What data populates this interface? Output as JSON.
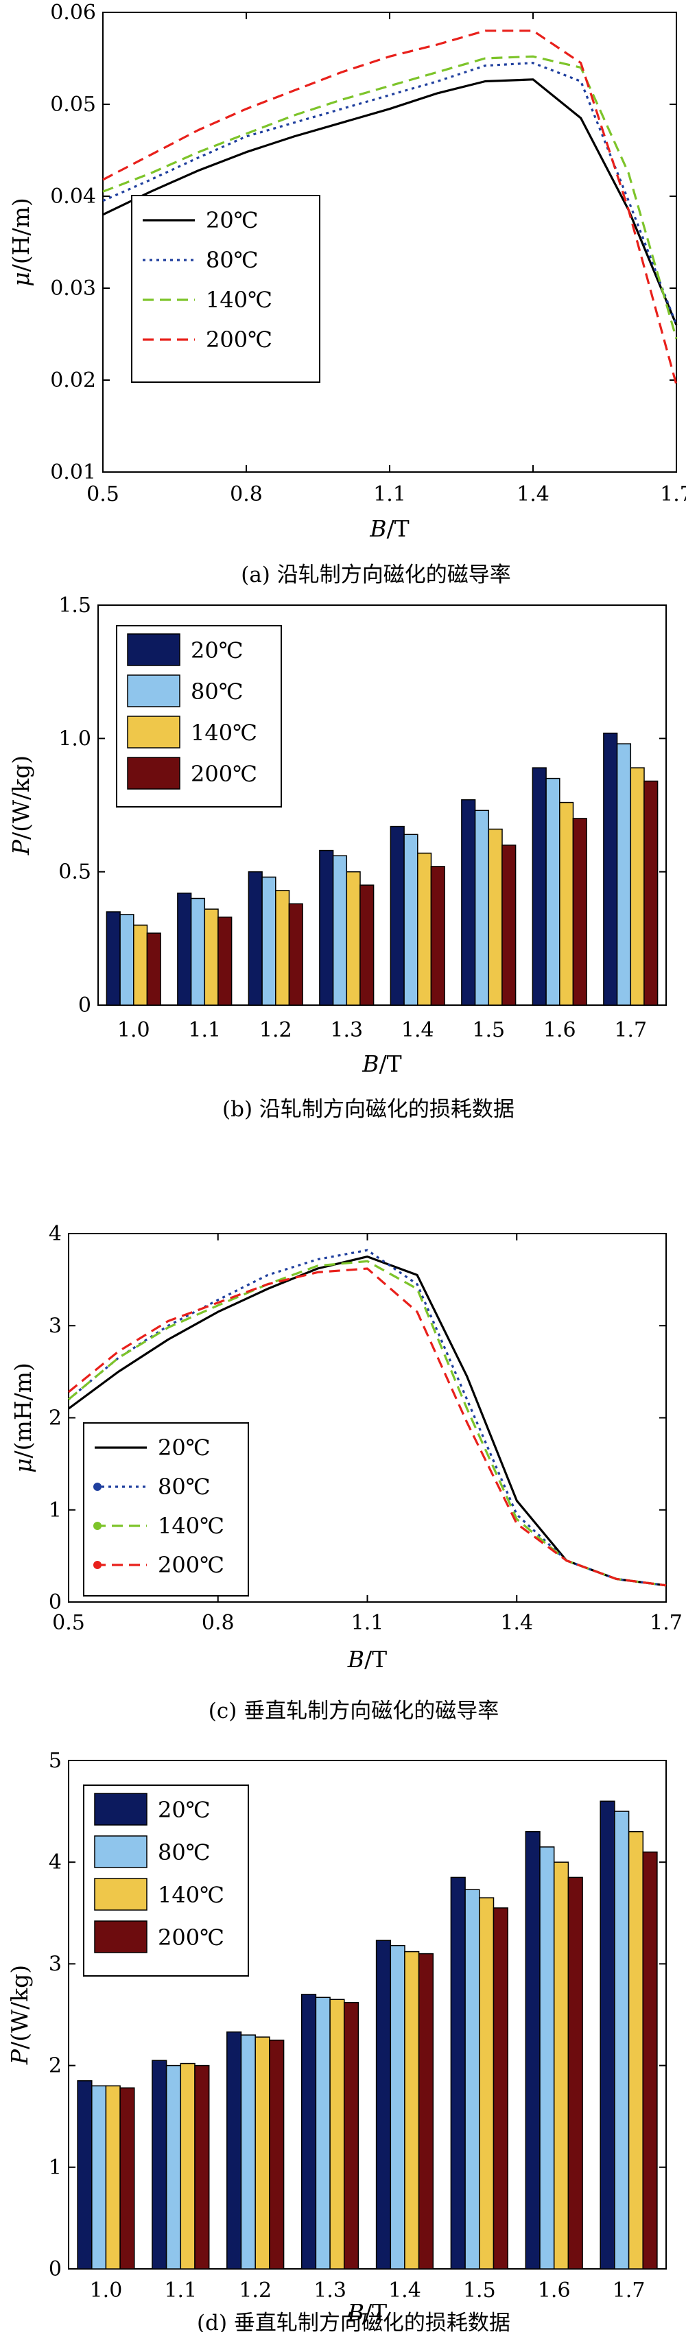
{
  "chart_data": [
    {
      "type": "line",
      "caption": "(a) 沿轧制方向磁化的磁导率",
      "xlabel_italic": "B",
      "xlabel_unit": "/T",
      "ylabel_italic": "μ",
      "ylabel_unit": "/(H/m)",
      "xlim": [
        0.5,
        1.7
      ],
      "ylim": [
        0.01,
        0.06
      ],
      "xticks": [
        0.5,
        0.8,
        1.1,
        1.4,
        1.7
      ],
      "xtick_labels": [
        "0.5",
        "0.8",
        "1.1",
        "1.4",
        "1.7"
      ],
      "yticks": [
        0.01,
        0.02,
        0.03,
        0.04,
        0.05,
        0.06
      ],
      "ytick_labels": [
        "0.01",
        "0.02",
        "0.03",
        "0.04",
        "0.05",
        "0.06"
      ],
      "grid": false,
      "legend_position": "left-middle",
      "x": [
        0.5,
        0.6,
        0.7,
        0.8,
        0.9,
        1.0,
        1.1,
        1.2,
        1.3,
        1.4,
        1.5,
        1.6,
        1.7
      ],
      "series": [
        {
          "name": "20℃",
          "color": "#000000",
          "dash": "solid",
          "values": [
            0.038,
            0.0405,
            0.0428,
            0.0448,
            0.0465,
            0.048,
            0.0495,
            0.0512,
            0.0525,
            0.0527,
            0.0485,
            0.0385,
            0.026
          ]
        },
        {
          "name": "80℃",
          "color": "#1f3f9e",
          "dash": "dot",
          "values": [
            0.0395,
            0.0418,
            0.0442,
            0.0465,
            0.048,
            0.0495,
            0.051,
            0.0525,
            0.0542,
            0.0545,
            0.0525,
            0.0395,
            0.026
          ]
        },
        {
          "name": "140℃",
          "color": "#7dc42a",
          "dash": "dash",
          "values": [
            0.0405,
            0.0425,
            0.0448,
            0.0468,
            0.0488,
            0.0505,
            0.052,
            0.0535,
            0.055,
            0.0552,
            0.054,
            0.0425,
            0.0245
          ]
        },
        {
          "name": "200℃",
          "color": "#e8201b",
          "dash": "dash",
          "values": [
            0.0418,
            0.0445,
            0.0472,
            0.0495,
            0.0515,
            0.0535,
            0.0552,
            0.0565,
            0.058,
            0.058,
            0.0545,
            0.0385,
            0.0195
          ]
        }
      ]
    },
    {
      "type": "bar",
      "caption": "(b) 沿轧制方向磁化的损耗数据",
      "xlabel_italic": "B",
      "xlabel_unit": "/T",
      "ylabel_italic": "P",
      "ylabel_unit": "/(W/kg)",
      "ylim": [
        0,
        1.5
      ],
      "yticks": [
        0,
        0.5,
        1.0,
        1.5
      ],
      "ytick_labels": [
        "0",
        "0.5",
        "1.0",
        "1.5"
      ],
      "categories": [
        "1.0",
        "1.1",
        "1.2",
        "1.3",
        "1.4",
        "1.5",
        "1.6",
        "1.7"
      ],
      "grid": false,
      "legend_position": "top-left",
      "series": [
        {
          "name": "20℃",
          "color": "#0c1a5e",
          "values": [
            0.35,
            0.42,
            0.5,
            0.58,
            0.67,
            0.77,
            0.89,
            1.02
          ]
        },
        {
          "name": "80℃",
          "color": "#8fc5ec",
          "values": [
            0.34,
            0.4,
            0.48,
            0.56,
            0.64,
            0.73,
            0.85,
            0.98
          ]
        },
        {
          "name": "140℃",
          "color": "#efc74a",
          "values": [
            0.3,
            0.36,
            0.43,
            0.5,
            0.57,
            0.66,
            0.76,
            0.89
          ]
        },
        {
          "name": "200℃",
          "color": "#6d0c0e",
          "values": [
            0.27,
            0.33,
            0.38,
            0.45,
            0.52,
            0.6,
            0.7,
            0.84
          ]
        }
      ]
    },
    {
      "type": "line",
      "caption": "(c) 垂直轧制方向磁化的磁导率",
      "xlabel_italic": "B",
      "xlabel_unit": "/T",
      "ylabel_italic": "μ",
      "ylabel_unit": "/(mH/m)",
      "xlim": [
        0.5,
        1.7
      ],
      "ylim": [
        0,
        4
      ],
      "xticks": [
        0.5,
        0.8,
        1.1,
        1.4,
        1.7
      ],
      "xtick_labels": [
        "0.5",
        "0.8",
        "1.1",
        "1.4",
        "1.7"
      ],
      "yticks": [
        0,
        1,
        2,
        3,
        4
      ],
      "ytick_labels": [
        "0",
        "1",
        "2",
        "3",
        "4"
      ],
      "grid": false,
      "legend_position": "bottom-left",
      "x": [
        0.5,
        0.6,
        0.7,
        0.8,
        0.9,
        1.0,
        1.1,
        1.2,
        1.3,
        1.4,
        1.5,
        1.6,
        1.7
      ],
      "series": [
        {
          "name": "20℃",
          "color": "#000000",
          "dash": "solid",
          "marker": false,
          "values": [
            2.1,
            2.5,
            2.85,
            3.15,
            3.4,
            3.62,
            3.75,
            3.55,
            2.45,
            1.1,
            0.45,
            0.25,
            0.18
          ]
        },
        {
          "name": "80℃",
          "color": "#1f3f9e",
          "dash": "dot",
          "marker": true,
          "values": [
            2.2,
            2.65,
            3.0,
            3.28,
            3.55,
            3.72,
            3.82,
            3.45,
            2.2,
            0.95,
            0.45,
            0.25,
            0.18
          ]
        },
        {
          "name": "140℃",
          "color": "#7dc42a",
          "dash": "dash",
          "marker": true,
          "values": [
            2.2,
            2.65,
            2.98,
            3.22,
            3.45,
            3.65,
            3.7,
            3.4,
            2.1,
            0.9,
            0.45,
            0.25,
            0.18
          ]
        },
        {
          "name": "200℃",
          "color": "#e8201b",
          "dash": "dash",
          "marker": true,
          "values": [
            2.28,
            2.72,
            3.05,
            3.25,
            3.45,
            3.58,
            3.62,
            3.15,
            1.95,
            0.85,
            0.45,
            0.25,
            0.18
          ]
        }
      ]
    },
    {
      "type": "bar",
      "caption": "(d) 垂直轧制方向磁化的损耗数据",
      "xlabel_italic": "B",
      "xlabel_unit": "/T",
      "ylabel_italic": "P",
      "ylabel_unit": "/(W/kg)",
      "ylim": [
        0,
        5
      ],
      "yticks": [
        0,
        1,
        2,
        3,
        4,
        5
      ],
      "ytick_labels": [
        "0",
        "1",
        "2",
        "3",
        "4",
        "5"
      ],
      "categories": [
        "1.0",
        "1.1",
        "1.2",
        "1.3",
        "1.4",
        "1.5",
        "1.6",
        "1.7"
      ],
      "grid": false,
      "legend_position": "top-left",
      "series": [
        {
          "name": "20℃",
          "color": "#0c1a5e",
          "values": [
            1.85,
            2.05,
            2.33,
            2.7,
            3.23,
            3.85,
            4.3,
            4.6
          ]
        },
        {
          "name": "80℃",
          "color": "#8fc5ec",
          "values": [
            1.8,
            2.0,
            2.3,
            2.67,
            3.18,
            3.73,
            4.15,
            4.5
          ]
        },
        {
          "name": "140℃",
          "color": "#efc74a",
          "values": [
            1.8,
            2.02,
            2.28,
            2.65,
            3.12,
            3.65,
            4.0,
            4.3
          ]
        },
        {
          "name": "200℃",
          "color": "#6d0c0e",
          "values": [
            1.78,
            2.0,
            2.25,
            2.62,
            3.1,
            3.55,
            3.85,
            4.1
          ]
        }
      ]
    }
  ]
}
